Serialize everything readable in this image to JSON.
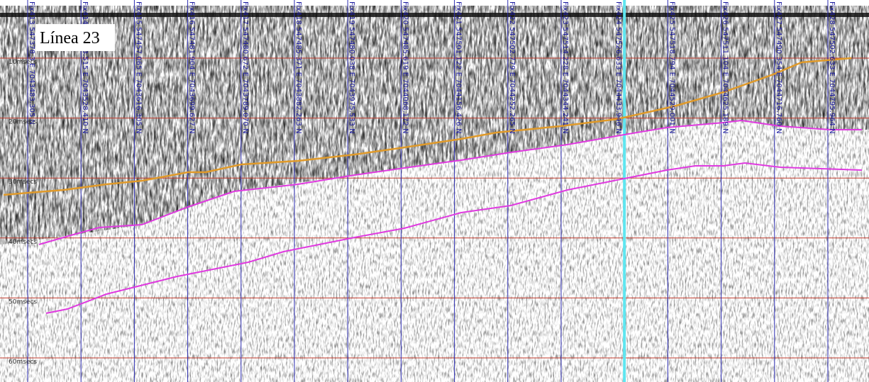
{
  "title": "Línea 23",
  "time_labels": [
    "10msecs",
    "20msecs",
    "30msecs",
    "40msecs",
    "50msecs",
    "60msecs"
  ],
  "fixes": [
    "Fix413 547378.3 E 7043483.305 N",
    "Fix414 547433.515 E 7043528.410 N",
    "Fix415 547457.065 E 7043616.305 N",
    "Fix416 547481.904 E 7043699.627 N",
    "Fix417 547480.672 E 7043789.070 N",
    "Fix418 547485.371 E 7043882.263 N",
    "Fix419 547480.038 E 7043975.533 N",
    "Fix420 547485.619 E 7044068.172 N",
    "Fix421 547501.122 E 7044156.426 N",
    "Fix422 547502.779 E 7044252.265 N",
    "Fix423 547514.228 E 7044344.241 N",
    "Fix424 547526.633 E 7044433.946 N",
    "Fix425 547518.794 E 7044529.001 N",
    "Fix426 547511.104 E 7044625.189 N",
    "Fix427 547490.354 E 7044716.760 N",
    "Fix428 547502.633 E 7044795.964 N"
  ]
}
